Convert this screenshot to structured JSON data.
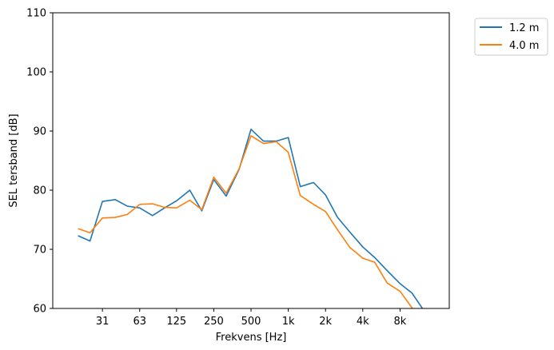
{
  "chart_data": {
    "type": "line",
    "xlabel": "Frekvens [Hz]",
    "ylabel": "SEL tersband [dB]",
    "x_scale": "log",
    "xlim": [
      12.5,
      20000
    ],
    "ylim": [
      60,
      110
    ],
    "x_ticks": [
      {
        "value": 31.5,
        "label": "31"
      },
      {
        "value": 63,
        "label": "63"
      },
      {
        "value": 125,
        "label": "125"
      },
      {
        "value": 250,
        "label": "250"
      },
      {
        "value": 500,
        "label": "500"
      },
      {
        "value": 1000,
        "label": "1k"
      },
      {
        "value": 2000,
        "label": "2k"
      },
      {
        "value": 4000,
        "label": "4k"
      },
      {
        "value": 8000,
        "label": "8k"
      }
    ],
    "y_ticks": [
      60,
      70,
      80,
      90,
      100,
      110
    ],
    "x": [
      20,
      25,
      31.5,
      40,
      50,
      63,
      80,
      100,
      125,
      160,
      200,
      250,
      315,
      400,
      500,
      630,
      800,
      1000,
      1250,
      1600,
      2000,
      2500,
      3150,
      4000,
      5000,
      6300,
      8000,
      10000,
      12500
    ],
    "series": [
      {
        "name": "1.2 m",
        "color": "#1f77b4",
        "values": [
          72.3,
          71.4,
          78.1,
          78.4,
          77.3,
          77.0,
          75.7,
          77.0,
          78.2,
          80.0,
          76.5,
          81.8,
          79.0,
          83.5,
          90.3,
          88.3,
          88.3,
          88.9,
          80.6,
          81.3,
          79.2,
          75.4,
          72.9,
          70.4,
          68.6,
          66.4,
          64.2,
          62.6,
          59.6
        ]
      },
      {
        "name": "4.0 m",
        "color": "#ff7f0e",
        "values": [
          73.5,
          72.8,
          75.3,
          75.4,
          75.9,
          77.6,
          77.7,
          77.1,
          77.0,
          78.3,
          76.7,
          82.2,
          79.5,
          83.6,
          89.2,
          87.9,
          88.2,
          86.4,
          79.1,
          77.6,
          76.4,
          73.3,
          70.3,
          68.5,
          67.8,
          64.3,
          62.9,
          60.1,
          57.5
        ]
      }
    ],
    "legend": {
      "placement": "outside-top-right"
    },
    "grid": false
  }
}
